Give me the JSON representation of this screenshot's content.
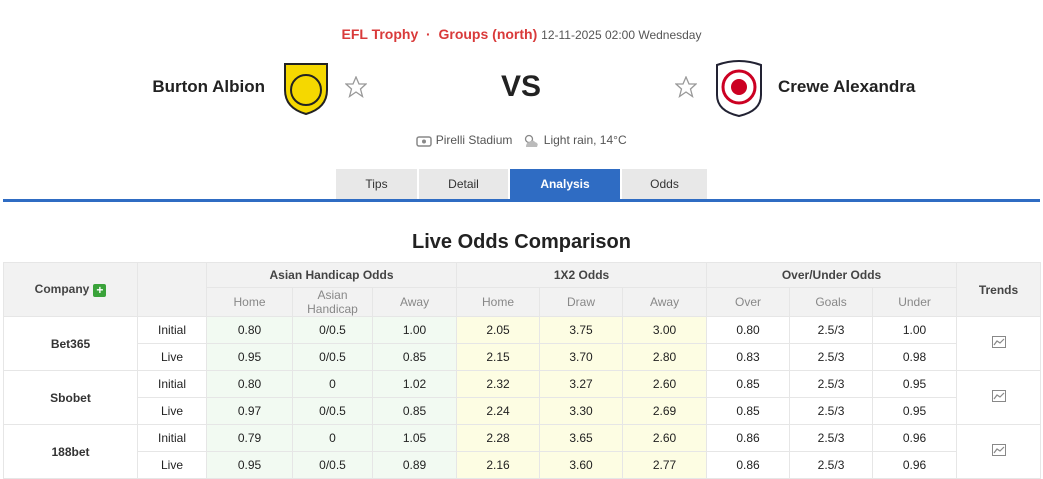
{
  "header": {
    "league": "EFL Trophy",
    "group": "Groups (north)",
    "datetime": "12-11-2025 02:00 Wednesday",
    "home": "Burton Albion",
    "away": "Crewe Alexandra",
    "vs": "VS",
    "venue": "Pirelli Stadium",
    "weather": "Light rain, 14°C"
  },
  "tabs": {
    "items": [
      "Tips",
      "Detail",
      "Analysis",
      "Odds"
    ],
    "active": "Analysis"
  },
  "table": {
    "title": "Live Odds Comparison",
    "company_header": "Company",
    "trends_header": "Trends",
    "groups": [
      "Asian Handicap Odds",
      "1X2 Odds",
      "Over/Under Odds"
    ],
    "subheaders": [
      "Home",
      "Asian Handicap",
      "Away",
      "Home",
      "Draw",
      "Away",
      "Over",
      "Goals",
      "Under"
    ],
    "companies": [
      {
        "name": "Bet365",
        "rows": [
          {
            "label": "Initial",
            "values": [
              "0.80",
              "0/0.5",
              "1.00",
              "2.05",
              "3.75",
              "3.00",
              "0.80",
              "2.5/3",
              "1.00"
            ]
          },
          {
            "label": "Live",
            "values": [
              "0.95",
              "0/0.5",
              "0.85",
              "2.15",
              "3.70",
              "2.80",
              "0.83",
              "2.5/3",
              "0.98"
            ]
          }
        ]
      },
      {
        "name": "Sbobet",
        "rows": [
          {
            "label": "Initial",
            "values": [
              "0.80",
              "0",
              "1.02",
              "2.32",
              "3.27",
              "2.60",
              "0.85",
              "2.5/3",
              "0.95"
            ]
          },
          {
            "label": "Live",
            "values": [
              "0.97",
              "0/0.5",
              "0.85",
              "2.24",
              "3.30",
              "2.69",
              "0.85",
              "2.5/3",
              "0.95"
            ]
          }
        ]
      },
      {
        "name": "188bet",
        "rows": [
          {
            "label": "Initial",
            "values": [
              "0.79",
              "0",
              "1.05",
              "2.28",
              "3.65",
              "2.60",
              "0.86",
              "2.5/3",
              "0.96"
            ]
          },
          {
            "label": "Live",
            "values": [
              "0.95",
              "0/0.5",
              "0.89",
              "2.16",
              "3.60",
              "2.77",
              "0.86",
              "2.5/3",
              "0.96"
            ]
          }
        ]
      }
    ]
  }
}
